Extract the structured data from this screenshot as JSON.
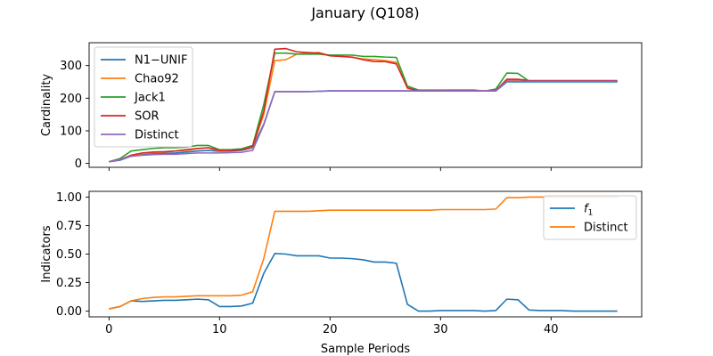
{
  "chart_data": {
    "title": "January (Q108)",
    "xlabel": "Sample Periods",
    "x": [
      0,
      1,
      2,
      3,
      4,
      5,
      6,
      7,
      8,
      9,
      10,
      11,
      12,
      13,
      14,
      15,
      16,
      17,
      18,
      19,
      20,
      21,
      22,
      23,
      24,
      25,
      26,
      27,
      28,
      29,
      30,
      31,
      32,
      33,
      34,
      35,
      36,
      37,
      38,
      39,
      40,
      41,
      42,
      43,
      44,
      45,
      46
    ],
    "x_ticks": [
      0,
      10,
      20,
      30,
      40
    ],
    "xlim": [
      -1.8,
      48.2
    ],
    "panels": [
      {
        "type": "line",
        "ylabel": "Cardinality",
        "ylim": [
          -12,
          370
        ],
        "y_ticks": [
          0,
          100,
          200,
          300
        ],
        "legend_position": "upper-left",
        "series": [
          {
            "name": "N1−UNIF",
            "color": "#1f77b4",
            "values": [
              5,
              10,
              22,
              27,
              30,
              31,
              32,
              35,
              38,
              40,
              37,
              38,
              40,
              48,
              120,
              220,
              220,
              220,
              220,
              221,
              222,
              222,
              222,
              222,
              222,
              222,
              222,
              222,
              222,
              222,
              222,
              222,
              222,
              222,
              222,
              222,
              250,
              250,
              250,
              250,
              250,
              250,
              250,
              250,
              250,
              250,
              250
            ]
          },
          {
            "name": "Chao92",
            "color": "#ff7f0e",
            "values": [
              5,
              12,
              25,
              30,
              33,
              35,
              38,
              40,
              45,
              48,
              38,
              40,
              42,
              50,
              150,
              315,
              318,
              335,
              338,
              340,
              330,
              328,
              325,
              320,
              318,
              315,
              310,
              230,
              222,
              222,
              222,
              224,
              224,
              224,
              222,
              224,
              255,
              255,
              253,
              252,
              252,
              252,
              252,
              252,
              252,
              252,
              252
            ]
          },
          {
            "name": "Jack1",
            "color": "#2ca02c",
            "values": [
              5,
              15,
              38,
              42,
              46,
              48,
              48,
              50,
              55,
              55,
              42,
              42,
              45,
              55,
              180,
              338,
              338,
              335,
              335,
              335,
              332,
              332,
              332,
              328,
              328,
              326,
              325,
              237,
              225,
              225,
              225,
              225,
              225,
              225,
              222,
              228,
              277,
              276,
              252,
              252,
              252,
              252,
              252,
              252,
              252,
              252,
              252
            ]
          },
          {
            "name": "SOR",
            "color": "#d62728",
            "values": [
              5,
              12,
              25,
              32,
              35,
              36,
              38,
              42,
              46,
              48,
              40,
              40,
              42,
              52,
              160,
              350,
              352,
              342,
              340,
              338,
              330,
              328,
              326,
              318,
              312,
              312,
              305,
              232,
              222,
              222,
              222,
              224,
              224,
              224,
              222,
              224,
              258,
              258,
              254,
              254,
              254,
              254,
              254,
              254,
              254,
              254,
              254
            ]
          },
          {
            "name": "Distinct",
            "color": "#9467bd",
            "values": [
              5,
              12,
              22,
              25,
              27,
              28,
              28,
              30,
              32,
              32,
              32,
              33,
              34,
              40,
              118,
              220,
              220,
              220,
              220,
              221,
              223,
              223,
              223,
              223,
              223,
              223,
              223,
              223,
              223,
              223,
              223,
              223,
              223,
              223,
              223,
              223,
              252,
              252,
              252,
              252,
              252,
              252,
              252,
              252,
              252,
              252,
              252
            ]
          }
        ]
      },
      {
        "type": "line",
        "ylabel": "Indicators",
        "ylim": [
          -0.05,
          1.05
        ],
        "y_ticks": [
          0.0,
          0.25,
          0.5,
          0.75,
          1.0
        ],
        "y_tick_labels": [
          "0.00",
          "0.25",
          "0.50",
          "0.75",
          "1.00"
        ],
        "legend_position": "upper-right",
        "series": [
          {
            "name": "f1",
            "name_main": "f",
            "name_sub": "1",
            "color": "#1f77b4",
            "values": [
              0.02,
              0.04,
              0.09,
              0.085,
              0.09,
              0.095,
              0.095,
              0.1,
              0.105,
              0.1,
              0.04,
              0.04,
              0.045,
              0.07,
              0.33,
              0.505,
              0.5,
              0.485,
              0.485,
              0.485,
              0.465,
              0.465,
              0.46,
              0.45,
              0.43,
              0.43,
              0.42,
              0.06,
              0.0,
              0.0,
              0.005,
              0.005,
              0.005,
              0.005,
              0.0,
              0.005,
              0.105,
              0.1,
              0.01,
              0.005,
              0.005,
              0.005,
              0.0,
              0.0,
              0.0,
              0.0,
              0.0
            ]
          },
          {
            "name": "Distinct",
            "color": "#ff7f0e",
            "values": [
              0.02,
              0.04,
              0.09,
              0.11,
              0.12,
              0.125,
              0.125,
              0.13,
              0.135,
              0.135,
              0.135,
              0.135,
              0.14,
              0.17,
              0.46,
              0.875,
              0.875,
              0.875,
              0.875,
              0.88,
              0.885,
              0.885,
              0.885,
              0.885,
              0.885,
              0.885,
              0.885,
              0.885,
              0.885,
              0.885,
              0.89,
              0.89,
              0.89,
              0.89,
              0.89,
              0.895,
              0.995,
              0.995,
              1.0,
              1.0,
              1.0,
              1.0,
              1.0,
              1.0,
              1.0,
              1.0,
              1.0
            ]
          }
        ]
      }
    ]
  }
}
